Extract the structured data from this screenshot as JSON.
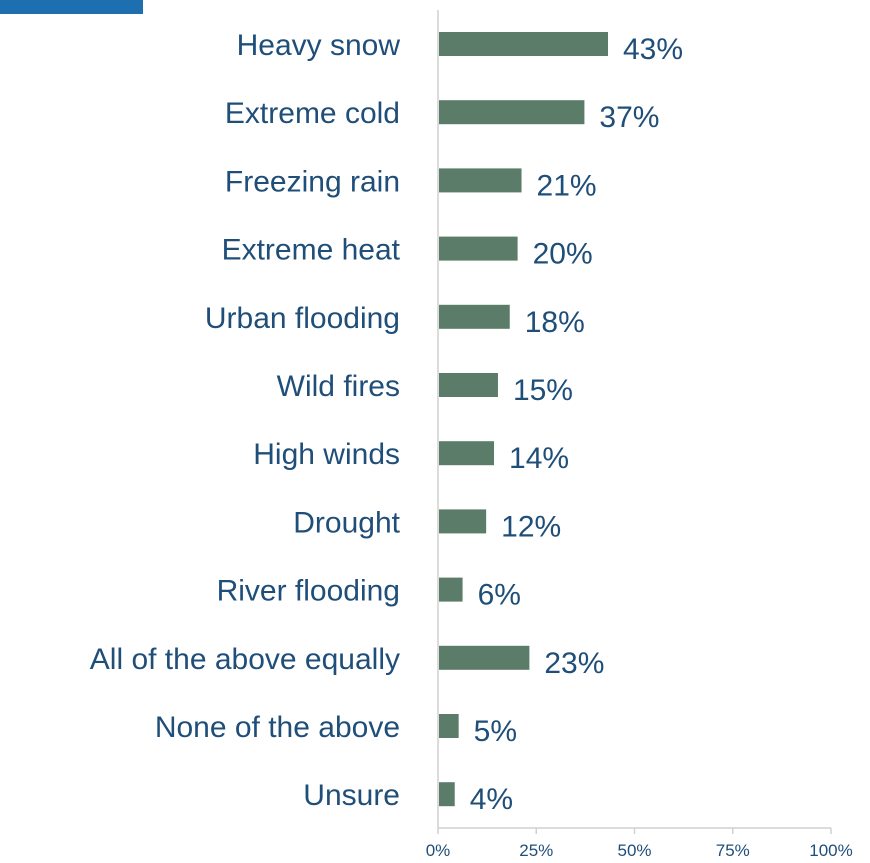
{
  "chart_data": {
    "type": "bar",
    "orientation": "horizontal",
    "categories": [
      "Heavy snow",
      "Extreme cold",
      "Freezing rain",
      "Extreme heat",
      "Urban flooding",
      "Wild fires",
      "High winds",
      "Drought",
      "River flooding",
      "All of the above equally",
      "None of the above",
      "Unsure"
    ],
    "values": [
      43,
      37,
      21,
      20,
      18,
      15,
      14,
      12,
      6,
      23,
      5,
      4
    ],
    "value_labels": [
      "43%",
      "37%",
      "21%",
      "20%",
      "18%",
      "15%",
      "14%",
      "12%",
      "6%",
      "23%",
      "5%",
      "4%"
    ],
    "x_ticks": [
      0,
      25,
      50,
      75,
      100
    ],
    "x_tick_labels": [
      "0%",
      "25%",
      "50%",
      "75%",
      "100%"
    ],
    "xlim": [
      0,
      100
    ],
    "grid": false,
    "legend": "none",
    "colors": {
      "bar": "#5a7c68",
      "text": "#1f4e79",
      "axis": "#d0d0d0",
      "corner_accent": "#1e6fb0"
    }
  }
}
